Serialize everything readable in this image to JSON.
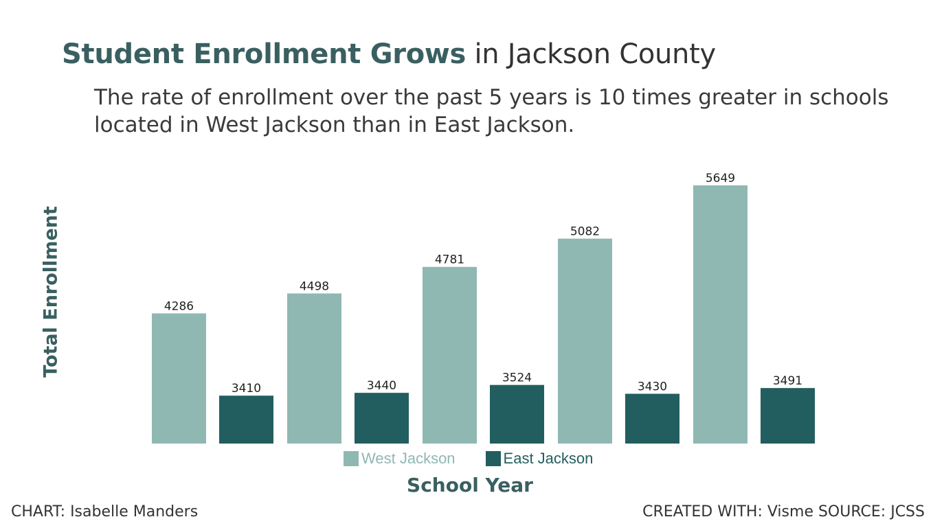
{
  "header": {
    "title_bold": "Student Enrollment Grows",
    "title_rest": " in Jackson County",
    "subtitle": "The rate of enrollment over the past 5 years is 10 times greater in schools located in West Jackson than in East Jackson."
  },
  "footer": {
    "credit": "CHART: Isabelle Manders",
    "source": "CREATED WITH: Visme SOURCE: JCSS"
  },
  "colors": {
    "west": "#8fb8b3",
    "east": "#225e5f",
    "accent": "#3a5f61"
  },
  "chart_data": {
    "type": "bar",
    "title": "Student Enrollment Grows in Jackson County",
    "xlabel": "School Year",
    "ylabel": "Total Enrollment",
    "categories": [
      "",
      "",
      "",
      "",
      ""
    ],
    "ylim": [
      2900,
      5800
    ],
    "grid": false,
    "legend": "bottom",
    "series": [
      {
        "name": "West Jackson",
        "values": [
          4286,
          4498,
          4781,
          5082,
          5649
        ]
      },
      {
        "name": "East Jackson",
        "values": [
          3410,
          3440,
          3524,
          3430,
          3491
        ]
      }
    ]
  }
}
